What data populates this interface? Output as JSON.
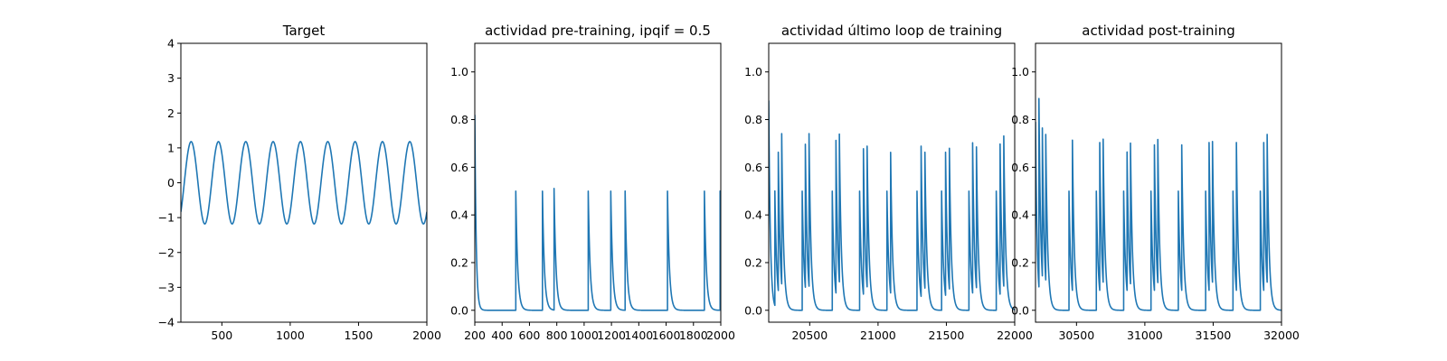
{
  "chart_data": [
    {
      "type": "line",
      "title": "Target",
      "xlabel": "",
      "ylabel": "",
      "xlim": [
        200,
        2000
      ],
      "ylim": [
        -4,
        4
      ],
      "x_ticks": [
        500,
        1000,
        1500,
        2000
      ],
      "x_tick_labels": [
        "500",
        "1000",
        "1500",
        "2000"
      ],
      "y_ticks": [
        -4,
        -3,
        -2,
        -1,
        0,
        1,
        2,
        3,
        4
      ],
      "y_tick_labels": [
        "−4",
        "−3",
        "−2",
        "−1",
        "0",
        "1",
        "2",
        "3",
        "4"
      ],
      "grid": false,
      "color": "#1f77b4",
      "signal": {
        "kind": "sinusoid",
        "amplitude": 1.18,
        "period": 200,
        "peak_x": [
          275,
          475,
          675,
          875,
          1075,
          1275,
          1475,
          1675,
          1875
        ],
        "x_start": 200,
        "x_end": 2000
      }
    },
    {
      "type": "line",
      "title": "actividad pre-training, ipqif = 0.5",
      "xlabel": "",
      "ylabel": "",
      "xlim": [
        200,
        2000
      ],
      "ylim": [
        -0.05,
        1.12
      ],
      "x_ticks": [
        200,
        400,
        600,
        800,
        1000,
        1200,
        1400,
        1600,
        1800,
        2000
      ],
      "x_tick_labels": [
        "200",
        "400",
        "600",
        "800",
        "1000",
        "1200",
        "1400",
        "1600",
        "1800",
        "2000"
      ],
      "y_ticks": [
        0.0,
        0.2,
        0.4,
        0.6,
        0.8,
        1.0
      ],
      "y_tick_labels": [
        "0.0",
        "0.2",
        "0.4",
        "0.6",
        "0.8",
        "1.0"
      ],
      "grid": false,
      "color": "#1f77b4",
      "signal": {
        "kind": "spike_train",
        "x_start": 200,
        "x_end": 2000,
        "initial_value": 0.82,
        "initial_decay": 10,
        "spike_x": [
          500,
          695,
          780,
          1030,
          1195,
          1300,
          1610,
          1880,
          1995
        ],
        "spike_heights": [
          0.5,
          0.5,
          0.51,
          0.5,
          0.5,
          0.5,
          0.5,
          0.5,
          0.5
        ],
        "decay": 14
      }
    },
    {
      "type": "line",
      "title": "actividad último loop de training",
      "xlabel": "",
      "ylabel": "",
      "xlim": [
        20200,
        22000
      ],
      "ylim": [
        -0.05,
        1.12
      ],
      "x_ticks": [
        20500,
        21000,
        21500,
        22000
      ],
      "x_tick_labels": [
        "20500",
        "21000",
        "21500",
        "22000"
      ],
      "y_ticks": [
        0.0,
        0.2,
        0.4,
        0.6,
        0.8,
        1.0
      ],
      "y_tick_labels": [
        "0.0",
        "0.2",
        "0.4",
        "0.6",
        "0.8",
        "1.0"
      ],
      "grid": false,
      "color": "#1f77b4",
      "signal": {
        "kind": "spike_train",
        "x_start": 20200,
        "x_end": 22000,
        "initial_value": 0.88,
        "initial_decay": 12,
        "spike_x": [
          20245,
          20270,
          20295,
          20445,
          20468,
          20495,
          20665,
          20692,
          20717,
          20865,
          20893,
          20920,
          21065,
          21092,
          21285,
          21315,
          21343,
          21465,
          21494,
          21522,
          21665,
          21692,
          21720,
          21865,
          21893,
          21920
        ],
        "spike_heights": [
          0.48,
          0.58,
          0.63,
          0.5,
          0.6,
          0.64,
          0.5,
          0.64,
          0.62,
          0.5,
          0.61,
          0.59,
          0.5,
          0.59,
          0.5,
          0.63,
          0.57,
          0.5,
          0.6,
          0.59,
          0.5,
          0.63,
          0.59,
          0.5,
          0.63,
          0.63
        ],
        "decay": 14
      }
    },
    {
      "type": "line",
      "title": "actividad post-training",
      "xlabel": "",
      "ylabel": "",
      "xlim": [
        30200,
        32000
      ],
      "ylim": [
        -0.05,
        1.12
      ],
      "x_ticks": [
        30500,
        31000,
        31500,
        32000
      ],
      "x_tick_labels": [
        "30500",
        "31000",
        "31500",
        "32000"
      ],
      "y_ticks": [
        0.0,
        0.2,
        0.4,
        0.6,
        0.8,
        1.0
      ],
      "y_tick_labels": [
        "0.0",
        "0.2",
        "0.4",
        "0.6",
        "0.8",
        "1.0"
      ],
      "grid": false,
      "color": "#1f77b4",
      "signal": {
        "kind": "spike_train",
        "x_start": 30200,
        "x_end": 32000,
        "initial_value": 0.79,
        "initial_decay": 12,
        "spike_x": [
          30225,
          30250,
          30275,
          30445,
          30470,
          30645,
          30670,
          30695,
          30845,
          30870,
          30895,
          31045,
          31070,
          31095,
          31245,
          31270,
          31445,
          31470,
          31495,
          31645,
          31670,
          31845,
          31870,
          31895
        ],
        "spike_heights": [
          0.79,
          0.62,
          0.61,
          0.5,
          0.63,
          0.5,
          0.62,
          0.6,
          0.5,
          0.58,
          0.59,
          0.5,
          0.61,
          0.6,
          0.5,
          0.61,
          0.5,
          0.62,
          0.59,
          0.5,
          0.62,
          0.5,
          0.62,
          0.62
        ],
        "decay": 14
      }
    }
  ]
}
